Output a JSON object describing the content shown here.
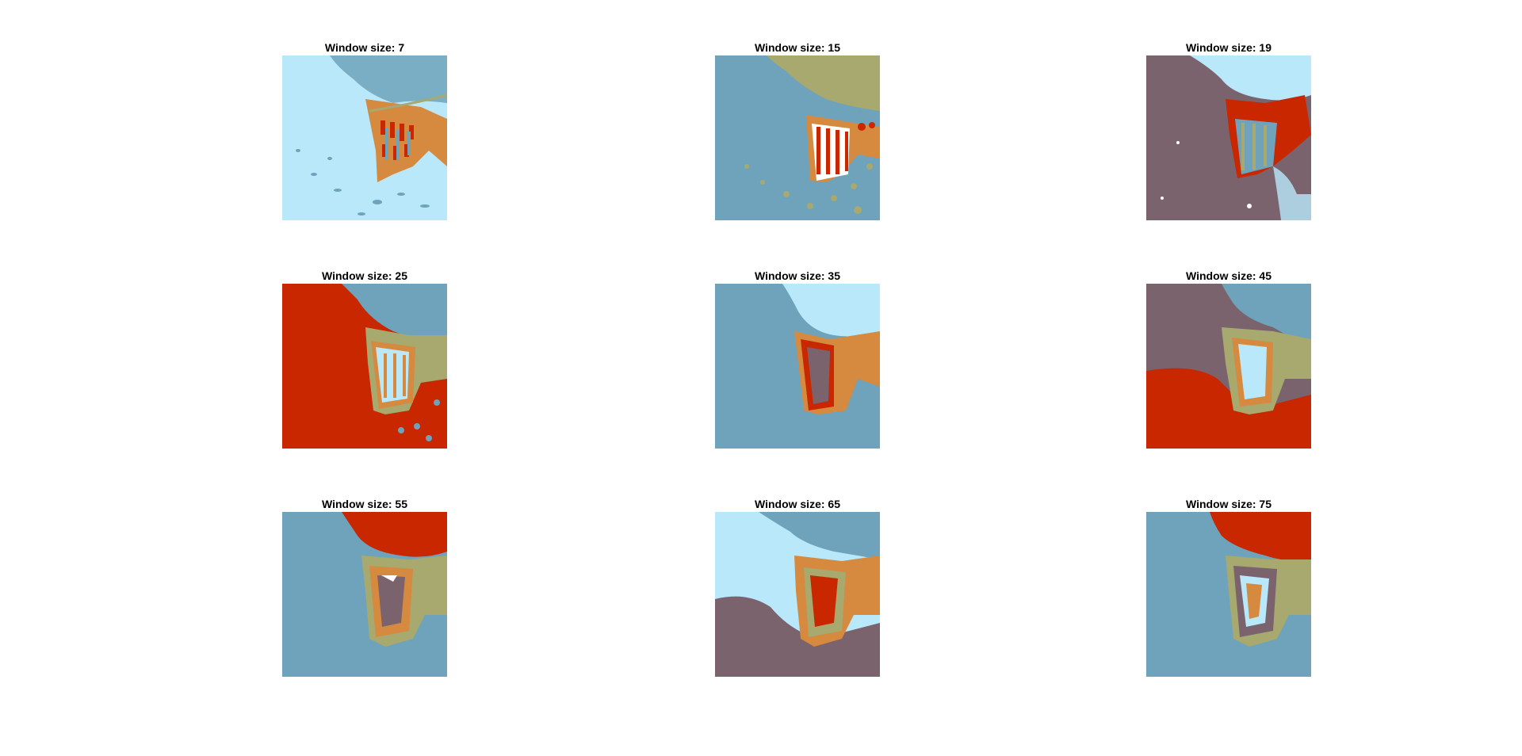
{
  "palette": {
    "light_blue": "#b9e8fb",
    "steel_blue": "#6ea3bb",
    "olive": "#a7a96e",
    "red": "#c82700",
    "orange": "#d58a3f",
    "mauve": "#7b636e",
    "white": "#ffffff"
  },
  "panels": [
    {
      "title": "Window size: 7",
      "bg": "steel_blue",
      "segments": [
        "light_blue",
        "steel_blue",
        "orange",
        "red",
        "olive"
      ]
    },
    {
      "title": "Window size: 15",
      "bg": "steel_blue",
      "segments": [
        "steel_blue",
        "olive",
        "red",
        "orange",
        "white"
      ]
    },
    {
      "title": "Window size: 19",
      "bg": "mauve",
      "segments": [
        "mauve",
        "light_blue",
        "steel_blue",
        "red",
        "olive"
      ]
    },
    {
      "title": "Window size: 25",
      "bg": "red",
      "segments": [
        "red",
        "steel_blue",
        "olive",
        "orange",
        "light_blue"
      ]
    },
    {
      "title": "Window size: 35",
      "bg": "steel_blue",
      "segments": [
        "steel_blue",
        "light_blue",
        "orange",
        "red",
        "mauve"
      ]
    },
    {
      "title": "Window size: 45",
      "bg": "mauve",
      "segments": [
        "mauve",
        "steel_blue",
        "red",
        "olive",
        "orange",
        "light_blue"
      ]
    },
    {
      "title": "Window size: 55",
      "bg": "steel_blue",
      "segments": [
        "steel_blue",
        "red",
        "olive",
        "orange",
        "mauve",
        "light_blue"
      ]
    },
    {
      "title": "Window size: 65",
      "bg": "light_blue",
      "segments": [
        "light_blue",
        "steel_blue",
        "mauve",
        "orange",
        "olive",
        "red"
      ]
    },
    {
      "title": "Window size: 75",
      "bg": "steel_blue",
      "segments": [
        "steel_blue",
        "red",
        "olive",
        "mauve",
        "light_blue",
        "orange"
      ]
    }
  ]
}
